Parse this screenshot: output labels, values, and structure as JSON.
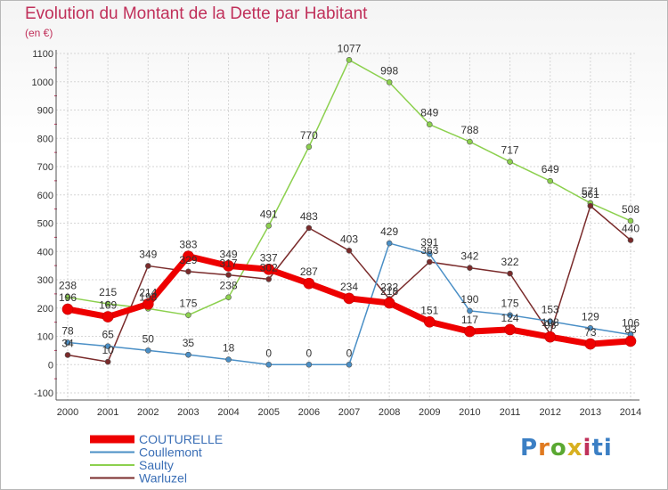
{
  "chart_data": {
    "type": "line",
    "title": "Evolution du Montant de la Dette par Habitant",
    "subtitle": "(en €)",
    "x": [
      "2000",
      "2001",
      "2002",
      "2003",
      "2004",
      "2005",
      "2006",
      "2007",
      "2008",
      "2009",
      "2010",
      "2011",
      "2012",
      "2013",
      "2014"
    ],
    "ylim": [
      -100,
      1100
    ],
    "yticks": [
      -100,
      0,
      100,
      200,
      300,
      400,
      500,
      600,
      700,
      800,
      900,
      1000,
      1100
    ],
    "grid": true,
    "legend": "bottom-left",
    "series": [
      {
        "name": "COUTURELLE",
        "color": "#ee0000",
        "values": [
          196,
          169,
          214,
          383,
          349,
          337,
          287,
          234,
          218,
          151,
          117,
          124,
          98,
          73,
          83
        ]
      },
      {
        "name": "Coullemont",
        "color": "#4a8fc6",
        "values": [
          78,
          65,
          50,
          35,
          18,
          0,
          0,
          0,
          429,
          391,
          190,
          175,
          153,
          129,
          106
        ]
      },
      {
        "name": "Saulty",
        "color": "#8cd04e",
        "values": [
          238,
          215,
          198,
          175,
          238,
          491,
          770,
          1077,
          998,
          849,
          788,
          717,
          649,
          571,
          508
        ]
      },
      {
        "name": "Warluzel",
        "color": "#7a2b2b",
        "values": [
          34,
          10,
          349,
          329,
          317,
          302,
          483,
          403,
          232,
          363,
          342,
          322,
          108,
          561,
          440
        ]
      }
    ]
  },
  "logo": {
    "letters": [
      "P",
      "r",
      "o",
      "x",
      "i",
      "t",
      "i"
    ]
  }
}
